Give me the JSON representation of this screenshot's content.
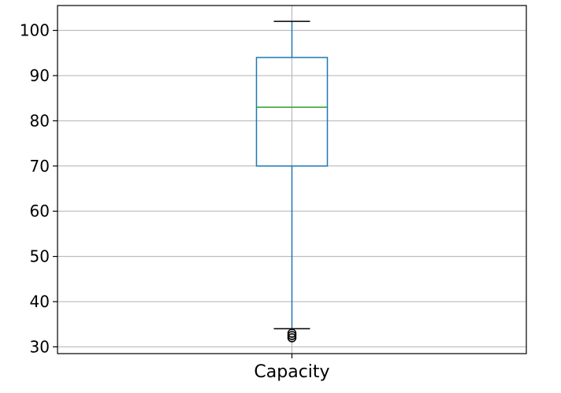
{
  "chart_data": {
    "type": "box",
    "categories": [
      "Capacity"
    ],
    "series": [
      {
        "whisker_low": 34,
        "q1": 70,
        "median": 83,
        "q3": 94,
        "whisker_high": 102,
        "outliers": [
          33,
          32.5,
          32
        ]
      }
    ],
    "yticks": [
      30,
      40,
      50,
      60,
      70,
      80,
      90,
      100
    ],
    "ytick_labels": [
      "30",
      "40",
      "50",
      "60",
      "70",
      "80",
      "90",
      "100"
    ],
    "ylim": [
      28.5,
      105.5
    ],
    "grid": true,
    "title": "",
    "xlabel": "",
    "ylabel": "",
    "colors": {
      "box": "#1f77b4",
      "median": "#2ca02c",
      "whisker_caps": "#000000",
      "outliers": "#000000",
      "grid": "#b0b0b0",
      "axes": "#000000"
    }
  }
}
